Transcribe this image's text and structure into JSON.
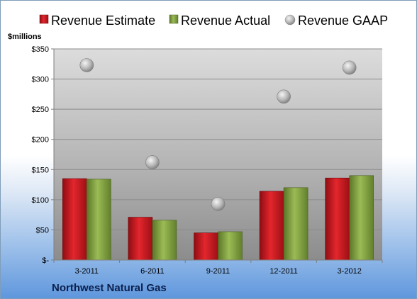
{
  "company": "Northwest Natural Gas",
  "chart_data": {
    "type": "bar",
    "categories": [
      "3-2011",
      "6-2011",
      "9-2011",
      "12-2011",
      "3-2012"
    ],
    "series": [
      {
        "name": "Revenue Estimate",
        "kind": "bar",
        "color": "#c0161c",
        "values": [
          135,
          71,
          45,
          114,
          136
        ]
      },
      {
        "name": "Revenue Actual",
        "kind": "bar",
        "color": "#7a9a3a",
        "values": [
          134,
          66,
          47,
          120,
          140
        ]
      },
      {
        "name": "Revenue GAAP",
        "kind": "marker",
        "color": "#b8b8b8",
        "values": [
          323,
          162,
          93,
          271,
          319
        ]
      }
    ],
    "ylabel": "$millions",
    "ylim": [
      0,
      350
    ],
    "yticks": [
      0,
      50,
      100,
      150,
      200,
      250,
      300,
      350
    ],
    "ytick_labels": [
      "$-",
      "$50",
      "$100",
      "$150",
      "$200",
      "$250",
      "$300",
      "$350"
    ],
    "grid": true,
    "legend": "top"
  }
}
